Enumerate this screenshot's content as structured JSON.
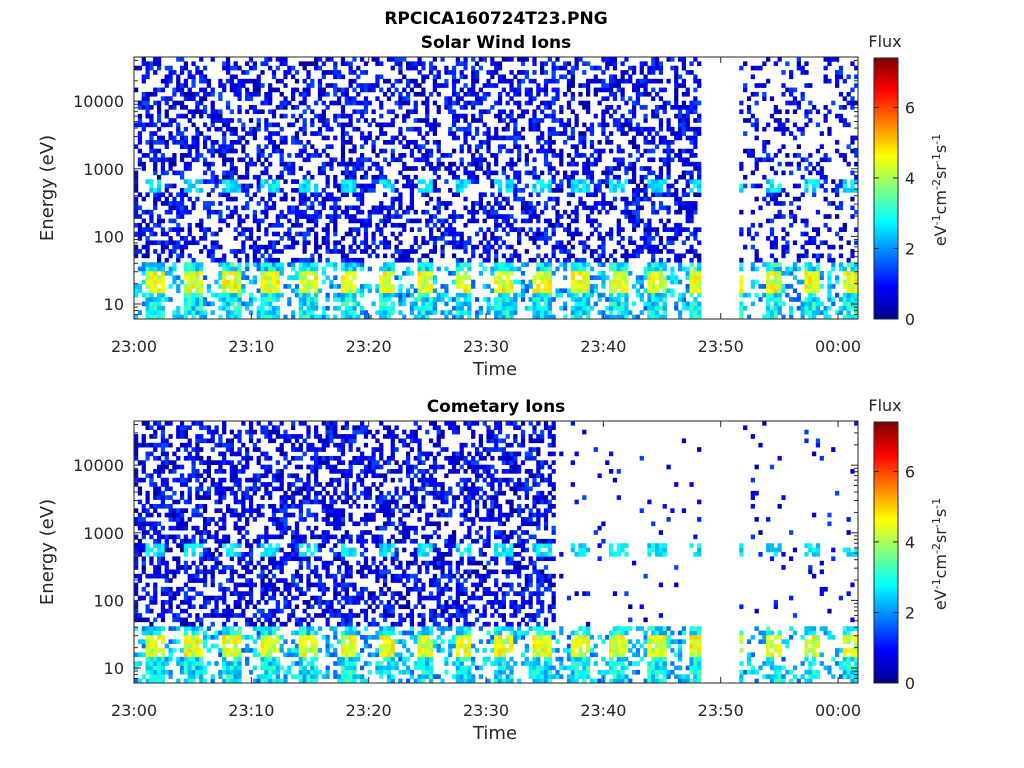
{
  "figure": {
    "title": "RPCICA160724T23.PNG"
  },
  "colors": {
    "colormap": [
      "#00008f",
      "#0000ff",
      "#0080ff",
      "#00ffff",
      "#80ff80",
      "#ffff00",
      "#ff8000",
      "#ff0000",
      "#800000"
    ]
  },
  "chart_data": [
    {
      "type": "heatmap",
      "title": "Solar Wind Ions",
      "xlabel": "Time",
      "ylabel": "Energy (eV)",
      "y_scale": "log",
      "ylim": [
        6,
        45000
      ],
      "x_ticks": [
        "23:00",
        "23:10",
        "23:20",
        "23:30",
        "23:40",
        "23:50",
        "00:00"
      ],
      "y_ticks": [
        "10",
        "100",
        "1000",
        "10000"
      ],
      "colorbar": {
        "title": "Flux",
        "label": "eV-1cm-2sr-1s-1",
        "ticks": [
          "0",
          "2",
          "4",
          "6"
        ],
        "range": [
          0,
          7.4
        ]
      },
      "data_gaps": [
        [
          "23:48",
          "23:51"
        ]
      ],
      "approximate_levels": [
        {
          "energy_range": "6-40 eV",
          "flux": "2-5",
          "note": "periodic bright bands every ~3.3 min"
        },
        {
          "energy_range": "~600 eV",
          "flux": "2-3",
          "note": "periodic cyan spots"
        },
        {
          "energy_range": "40-45000 eV",
          "flux": "0.3-1.5",
          "note": "sparse low-level background"
        }
      ]
    },
    {
      "type": "heatmap",
      "title": "Cometary Ions",
      "xlabel": "Time",
      "ylabel": "Energy (eV)",
      "y_scale": "log",
      "ylim": [
        6,
        45000
      ],
      "x_ticks": [
        "23:00",
        "23:10",
        "23:20",
        "23:30",
        "23:40",
        "23:50",
        "00:00"
      ],
      "y_ticks": [
        "10",
        "100",
        "1000",
        "10000"
      ],
      "colorbar": {
        "title": "Flux",
        "label": "eV-1cm-2sr-1s-1",
        "ticks": [
          "0",
          "2",
          "4",
          "6"
        ],
        "range": [
          0,
          7.4
        ]
      },
      "data_gaps": [
        [
          "23:48",
          "23:51"
        ]
      ],
      "approximate_levels": [
        {
          "energy_range": "6-40 eV",
          "flux": "2-5",
          "note": "periodic bright bands every ~3.3 min"
        },
        {
          "energy_range": "40-45000 eV",
          "flux": "0.3-1.5",
          "note": "dense background until ~23:36, sparse afterwards"
        }
      ]
    }
  ]
}
